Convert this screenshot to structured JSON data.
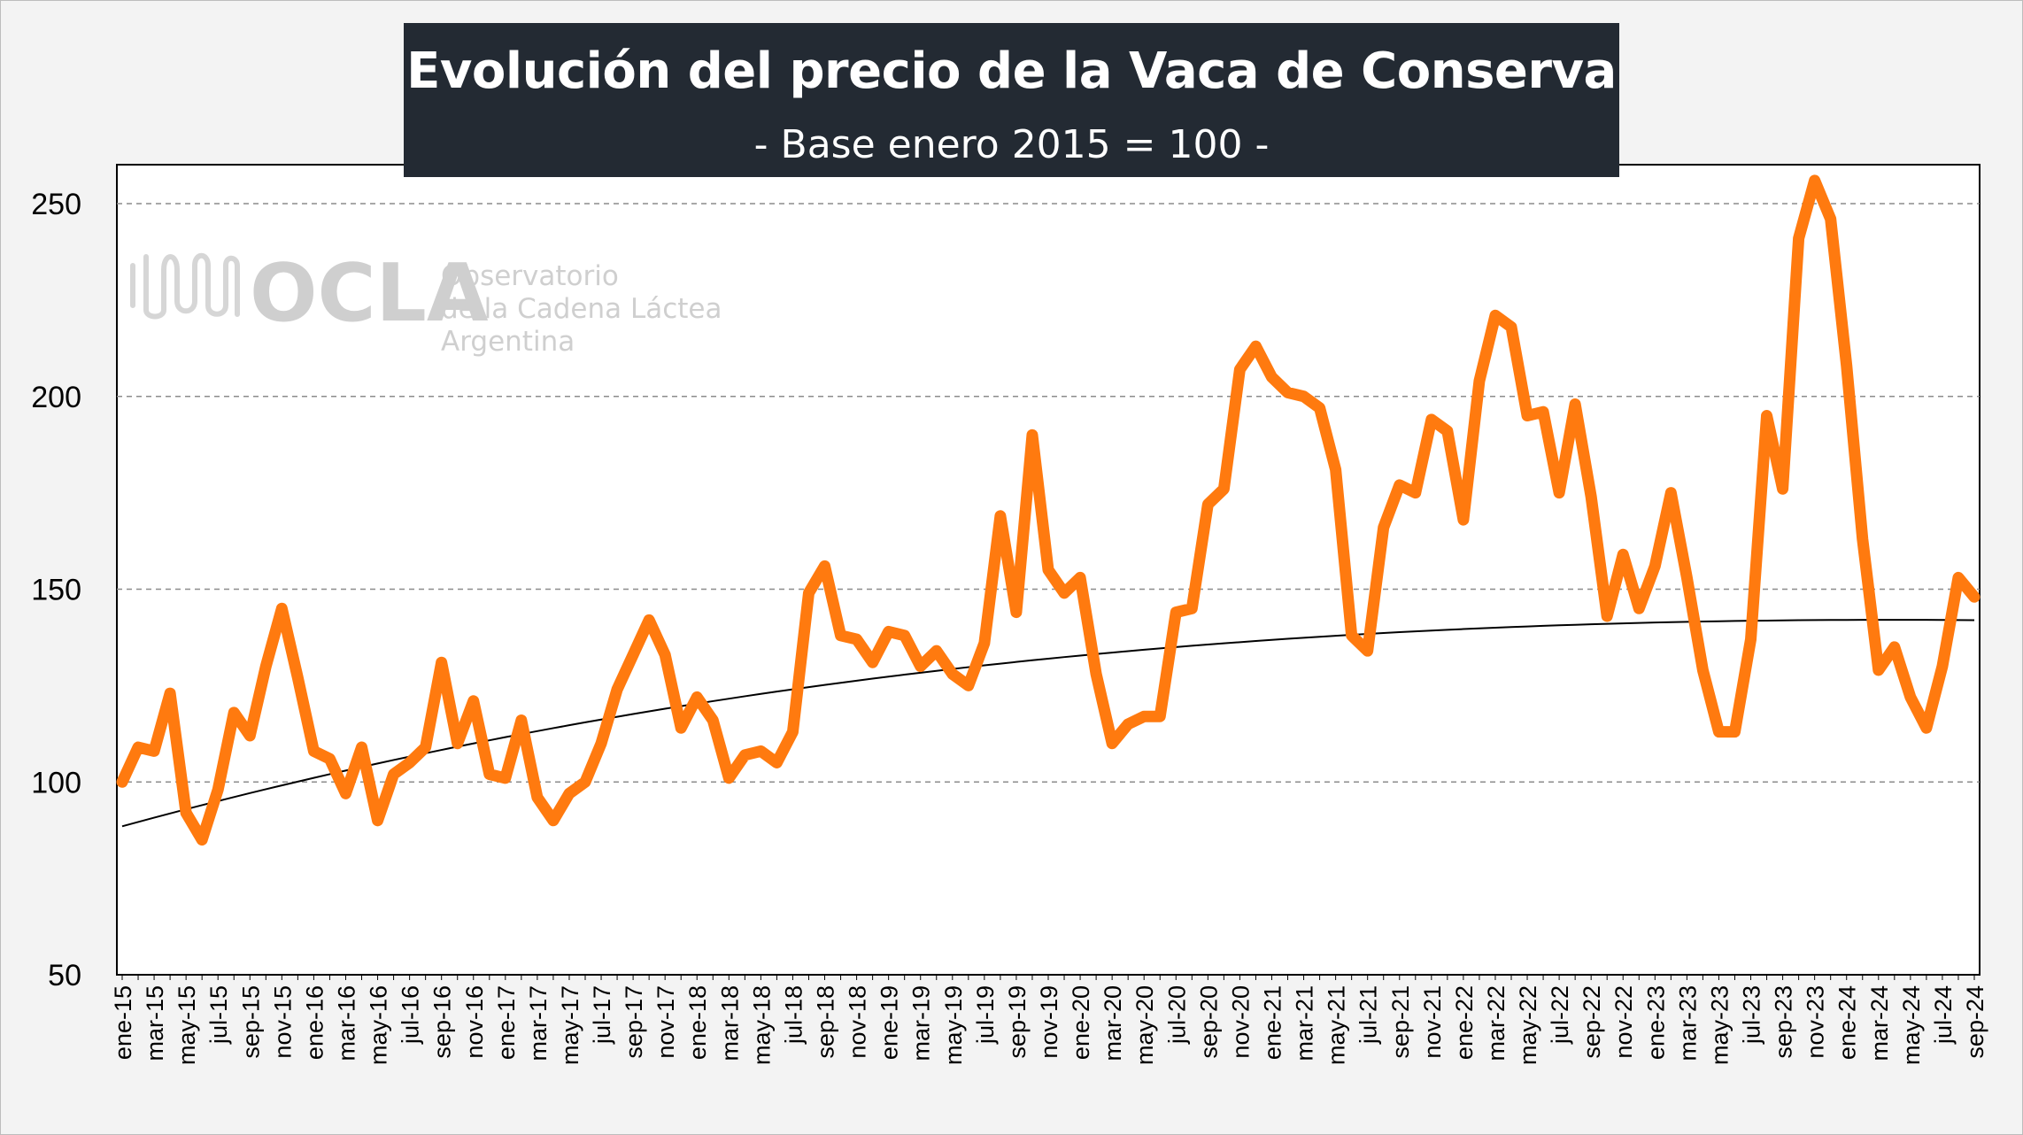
{
  "chart_data": {
    "type": "line",
    "title": "Evolución del precio de la Vaca de Conserva",
    "subtitle": "- Base enero 2015 = 100 -",
    "ylim": [
      50,
      260
    ],
    "yticks": [
      50,
      100,
      150,
      200,
      250
    ],
    "grid": "horizontal dashed",
    "categories": [
      "ene-15",
      "feb-15",
      "mar-15",
      "abr-15",
      "may-15",
      "jun-15",
      "jul-15",
      "ago-15",
      "sep-15",
      "oct-15",
      "nov-15",
      "dic-15",
      "ene-16",
      "feb-16",
      "mar-16",
      "abr-16",
      "may-16",
      "jun-16",
      "jul-16",
      "ago-16",
      "sep-16",
      "oct-16",
      "nov-16",
      "dic-16",
      "ene-17",
      "feb-17",
      "mar-17",
      "abr-17",
      "may-17",
      "jun-17",
      "jul-17",
      "ago-17",
      "sep-17",
      "oct-17",
      "nov-17",
      "dic-17",
      "ene-18",
      "feb-18",
      "mar-18",
      "abr-18",
      "may-18",
      "jun-18",
      "jul-18",
      "ago-18",
      "sep-18",
      "oct-18",
      "nov-18",
      "dic-18",
      "ene-19",
      "feb-19",
      "mar-19",
      "abr-19",
      "may-19",
      "jun-19",
      "jul-19",
      "ago-19",
      "sep-19",
      "oct-19",
      "nov-19",
      "dic-19",
      "ene-20",
      "feb-20",
      "mar-20",
      "abr-20",
      "may-20",
      "jun-20",
      "jul-20",
      "ago-20",
      "sep-20",
      "oct-20",
      "nov-20",
      "dic-20",
      "ene-21",
      "feb-21",
      "mar-21",
      "abr-21",
      "may-21",
      "jun-21",
      "jul-21",
      "ago-21",
      "sep-21",
      "oct-21",
      "nov-21",
      "dic-21",
      "ene-22",
      "feb-22",
      "mar-22",
      "abr-22",
      "may-22",
      "jun-22",
      "jul-22",
      "ago-22",
      "sep-22",
      "oct-22",
      "nov-22",
      "dic-22",
      "ene-23",
      "feb-23",
      "mar-23",
      "abr-23",
      "may-23",
      "jun-23",
      "jul-23",
      "ago-23",
      "sep-23",
      "oct-23",
      "nov-23",
      "dic-23",
      "ene-24",
      "feb-24",
      "mar-24",
      "abr-24",
      "may-24",
      "jun-24",
      "jul-24",
      "ago-24",
      "sep-24"
    ],
    "xtick_labels": [
      "ene-15",
      "mar-15",
      "may-15",
      "jul-15",
      "sep-15",
      "nov-15",
      "ene-16",
      "mar-16",
      "may-16",
      "jul-16",
      "sep-16",
      "nov-16",
      "ene-17",
      "mar-17",
      "may-17",
      "jul-17",
      "sep-17",
      "nov-17",
      "ene-18",
      "mar-18",
      "may-18",
      "jul-18",
      "sep-18",
      "nov-18",
      "ene-19",
      "mar-19",
      "may-19",
      "jul-19",
      "sep-19",
      "nov-19",
      "ene-20",
      "mar-20",
      "may-20",
      "jul-20",
      "sep-20",
      "nov-20",
      "ene-21",
      "mar-21",
      "may-21",
      "jul-21",
      "sep-21",
      "nov-21",
      "ene-22",
      "mar-22",
      "may-22",
      "jul-22",
      "sep-22",
      "nov-22",
      "ene-23",
      "mar-23",
      "may-23",
      "jul-23",
      "sep-23",
      "nov-23",
      "ene-24",
      "mar-24",
      "may-24",
      "jul-24",
      "sep-24"
    ],
    "series": [
      {
        "color": "#ff7a0f",
        "values": [
          100,
          109,
          108,
          123,
          92,
          85,
          98,
          118,
          112,
          130,
          145,
          127,
          108,
          106,
          97,
          109,
          90,
          102,
          105,
          109,
          131,
          110,
          121,
          102,
          101,
          116,
          96,
          90,
          97,
          100,
          110,
          124,
          133,
          142,
          133,
          114,
          122,
          116,
          101,
          107,
          108,
          105,
          113,
          149,
          156,
          138,
          137,
          131,
          139,
          138,
          130,
          134,
          128,
          125,
          136,
          169,
          144,
          190,
          155,
          149,
          153,
          128,
          110,
          115,
          117,
          117,
          144,
          145,
          172,
          176,
          207,
          213,
          205,
          201,
          200,
          197,
          181,
          138,
          134,
          166,
          177,
          175,
          194,
          191,
          168,
          204,
          221,
          218,
          195,
          196,
          175,
          198,
          174,
          143,
          159,
          145,
          156,
          175,
          153,
          129,
          113,
          113,
          137,
          195,
          176,
          241,
          256,
          246,
          208,
          163,
          129,
          135,
          122,
          114,
          130,
          153,
          148
        ]
      },
      {
        "type": "trend",
        "color": "#000000",
        "values": [
          88.5,
          89.63,
          90.74,
          91.84,
          92.92,
          93.99,
          95.04,
          96.08,
          97.11,
          98.12,
          99.11,
          100.09,
          101.06,
          102.02,
          102.96,
          103.88,
          104.8,
          105.7,
          106.58,
          107.45,
          108.31,
          109.16,
          109.99,
          110.81,
          111.62,
          112.41,
          113.19,
          113.96,
          114.72,
          115.46,
          116.19,
          116.91,
          117.62,
          118.31,
          118.99,
          119.66,
          120.32,
          120.97,
          121.6,
          122.23,
          122.84,
          123.44,
          124.03,
          124.6,
          125.17,
          125.72,
          126.27,
          126.8,
          127.32,
          127.83,
          128.34,
          128.83,
          129.31,
          129.78,
          130.24,
          130.69,
          131.13,
          131.56,
          131.98,
          132.39,
          132.79,
          133.18,
          133.56,
          133.93,
          134.29,
          134.64,
          134.98,
          135.32,
          135.64,
          135.96,
          136.26,
          136.56,
          136.85,
          137.13,
          137.4,
          137.66,
          137.92,
          138.16,
          138.4,
          138.63,
          138.85,
          139.07,
          139.27,
          139.47,
          139.66,
          139.84,
          140.02,
          140.18,
          140.34,
          140.49,
          140.64,
          140.77,
          140.9,
          141.03,
          141.14,
          141.25,
          141.35,
          141.44,
          141.53,
          141.61,
          141.68,
          141.75,
          141.81,
          141.86,
          141.91,
          141.95,
          141.98,
          142.01,
          142.03,
          142.04,
          142.05,
          142.05,
          142.05,
          142.04,
          142.02,
          142,
          141.97
        ]
      }
    ]
  },
  "watermark": {
    "logo": "OCLA",
    "line1": "Observatorio",
    "line2": "de la Cadena Láctea",
    "line3": "Argentina",
    "icon": "waveform-icon"
  }
}
